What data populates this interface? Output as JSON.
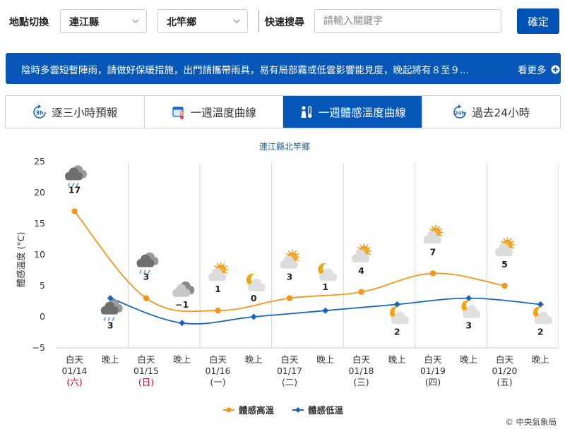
{
  "toolbar": {
    "location_label": "地點切換",
    "county": "連江縣",
    "township": "北竿鄉",
    "search_label": "快速搜尋",
    "search_placeholder": "請輸入關鍵字",
    "confirm_label": "確定"
  },
  "banner": {
    "message": "陰時多雲短暫陣雨，請做好保暖措施，出門請攜帶雨具，易有局部霧或低雲影響能見度，晚起將有８至９...",
    "more_label": "看更多"
  },
  "tabs": [
    {
      "label": "逐三小時預報",
      "icon": "3h-clock-icon",
      "active": false
    },
    {
      "label": "一週溫度曲線",
      "icon": "thermometer-calendar-icon",
      "active": false
    },
    {
      "label": "一週體感溫度曲線",
      "icon": "person-thermometer-icon",
      "active": true
    },
    {
      "label": "過去24小時",
      "icon": "24h-clock-icon",
      "active": false
    }
  ],
  "chart_data": {
    "type": "line",
    "title": "連江縣北竿鄉",
    "ylabel": "體感溫度 (°C)",
    "ylim": [
      -5,
      25
    ],
    "yticks": [
      -5,
      0,
      5,
      10,
      15,
      20,
      25
    ],
    "periods": [
      {
        "label": "白天",
        "date": "01/14",
        "weekday": "(六)",
        "weekend": true
      },
      {
        "label": "晚上"
      },
      {
        "label": "白天",
        "date": "01/15",
        "weekday": "(日)",
        "weekend": true
      },
      {
        "label": "晚上"
      },
      {
        "label": "白天",
        "date": "01/16",
        "weekday": "(一)",
        "weekend": false
      },
      {
        "label": "晚上"
      },
      {
        "label": "白天",
        "date": "01/17",
        "weekday": "(二)",
        "weekend": false
      },
      {
        "label": "晚上"
      },
      {
        "label": "白天",
        "date": "01/18",
        "weekday": "(三)",
        "weekend": false
      },
      {
        "label": "晚上"
      },
      {
        "label": "白天",
        "date": "01/19",
        "weekday": "(四)",
        "weekend": false
      },
      {
        "label": "晚上"
      },
      {
        "label": "白天",
        "date": "01/20",
        "weekday": "(五)",
        "weekend": false
      },
      {
        "label": "晚上"
      }
    ],
    "series": [
      {
        "name": "體感高溫",
        "color": "#f5961e",
        "points": [
          [
            0,
            17
          ],
          [
            2,
            3
          ],
          [
            4,
            1
          ],
          [
            6,
            3
          ],
          [
            8,
            4
          ],
          [
            10,
            7
          ],
          [
            12,
            5
          ]
        ]
      },
      {
        "name": "體感低溫",
        "color": "#1565c0",
        "points": [
          [
            1,
            3
          ],
          [
            3,
            -1
          ],
          [
            5,
            0
          ],
          [
            7,
            1
          ],
          [
            9,
            2
          ],
          [
            11,
            3
          ],
          [
            13,
            2
          ]
        ]
      }
    ],
    "weather_icons": [
      {
        "period": 0,
        "icon": "rain-cloud-icon",
        "temp": 17
      },
      {
        "period": 1,
        "icon": "rain-cloud-icon",
        "temp": 3
      },
      {
        "period": 2,
        "icon": "rain-cloud-icon",
        "temp": 3
      },
      {
        "period": 3,
        "icon": "cloudy-icon",
        "temp": -1
      },
      {
        "period": 4,
        "icon": "sun-cloud-icon",
        "temp": 1
      },
      {
        "period": 5,
        "icon": "moon-cloud-icon",
        "temp": 0
      },
      {
        "period": 6,
        "icon": "sun-cloud-icon",
        "temp": 3
      },
      {
        "period": 7,
        "icon": "moon-cloud-icon",
        "temp": 1
      },
      {
        "period": 8,
        "icon": "sun-cloud-icon",
        "temp": 4
      },
      {
        "period": 9,
        "icon": "moon-cloud-icon",
        "temp": 2
      },
      {
        "period": 10,
        "icon": "sun-cloud-icon",
        "temp": 7
      },
      {
        "period": 11,
        "icon": "moon-cloud-icon",
        "temp": 3
      },
      {
        "period": 12,
        "icon": "sun-cloud-icon",
        "temp": 5
      },
      {
        "period": 13,
        "icon": "moon-cloud-icon",
        "temp": 2
      }
    ],
    "legend_position": "bottom-center",
    "grid": "vertical-per-day",
    "colors": {
      "weekend": "#d0021b",
      "weekday": "#333333"
    },
    "credit": "© 中央氣象局"
  }
}
